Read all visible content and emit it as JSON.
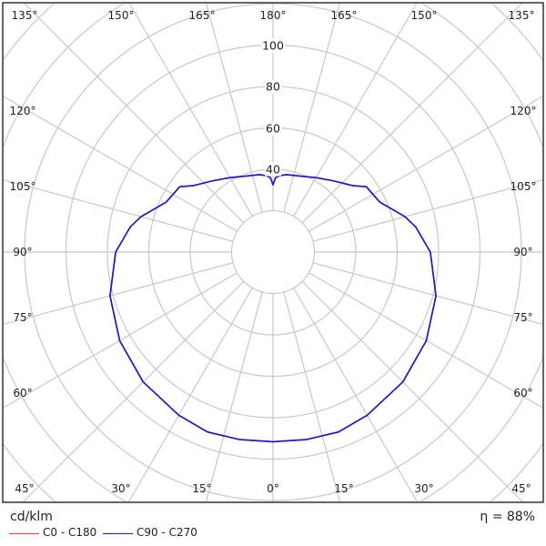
{
  "chart_data": {
    "type": "polar",
    "unit_label": "cd/klm",
    "efficiency_label": "η = 88%",
    "radial_ticks": [
      40,
      60,
      80,
      100
    ],
    "radial_tick_labels": [
      "40",
      "60",
      "80",
      "100"
    ],
    "radial_ring_step": 20,
    "angle_labels": {
      "top": [
        "135°",
        "150°",
        "165°",
        "180°",
        "165°",
        "150°",
        "135°"
      ],
      "left": [
        "120°",
        "105°",
        "90°",
        "75°",
        "60°"
      ],
      "right": [
        "120°",
        "105°",
        "90°",
        "75°",
        "60°"
      ],
      "bottom": [
        "45°",
        "30°",
        "15°",
        "0°",
        "15°",
        "30°",
        "45°"
      ]
    },
    "gamma_deg": [
      0,
      10,
      20,
      30,
      45,
      60,
      75,
      90,
      100,
      105,
      115,
      125,
      130,
      140,
      150,
      160,
      170,
      175,
      178,
      180
    ],
    "series": [
      {
        "name": "C0 - C180",
        "color": "#e53935",
        "values": [
          91.6,
          92,
          92.5,
          91,
          88.7,
          85.5,
          81.5,
          76,
          70,
          66,
          57,
          55,
          50,
          45,
          41.5,
          39,
          38,
          37,
          36,
          32.5
        ]
      },
      {
        "name": "C90 - C270",
        "color": "#1a1acc",
        "values": [
          91.6,
          92,
          92.5,
          91,
          88.7,
          85.5,
          81.5,
          76,
          70,
          66,
          57,
          55,
          50,
          45,
          41.5,
          39,
          38,
          37,
          36,
          32.5
        ]
      }
    ],
    "grid": true,
    "legend": "bottom-left"
  }
}
